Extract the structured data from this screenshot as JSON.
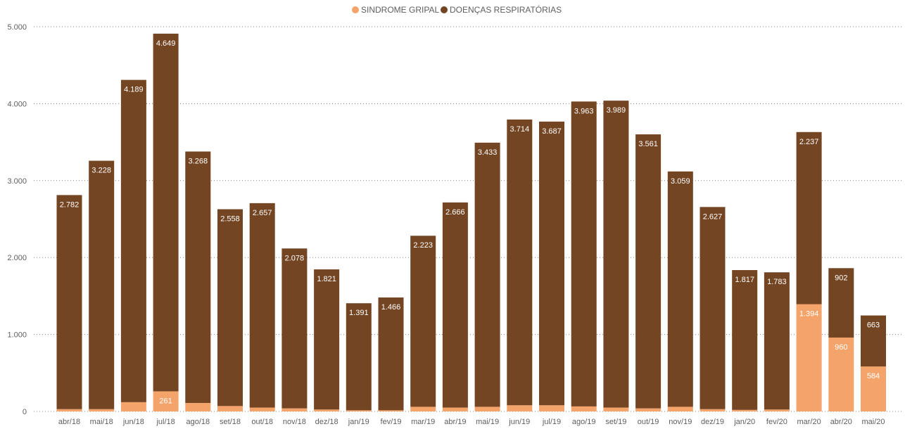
{
  "chart_data": {
    "type": "bar",
    "stacked": true,
    "legend_position": "top-center",
    "grid": true,
    "ylim": [
      0,
      5000
    ],
    "y_ticks": [
      "0",
      "1.000",
      "2.000",
      "3.000",
      "4.000",
      "5.000"
    ],
    "colors": {
      "sindrome": "#f4a46a",
      "doencas": "#744522"
    },
    "categories": [
      "abr/18",
      "mai/18",
      "jun/18",
      "jul/18",
      "ago/18",
      "set/18",
      "out/18",
      "nov/18",
      "dez/18",
      "jan/19",
      "fev/19",
      "mar/19",
      "abr/19",
      "mai/19",
      "jun/19",
      "jul/19",
      "ago/19",
      "set/19",
      "out/19",
      "nov/19",
      "dez/19",
      "jan/20",
      "fev/20",
      "mar/20",
      "abr/20",
      "mai/20"
    ],
    "series": [
      {
        "name": "SINDROME GRIPAL",
        "values": [
          30,
          30,
          120,
          261,
          110,
          70,
          50,
          40,
          25,
          15,
          15,
          60,
          50,
          60,
          80,
          80,
          65,
          50,
          40,
          60,
          30,
          20,
          25,
          1394,
          960,
          584
        ],
        "labels": [
          "",
          "",
          "",
          "261",
          "",
          "",
          "",
          "",
          "",
          "",
          "",
          "",
          "",
          "",
          "",
          "",
          "",
          "",
          "",
          "",
          "",
          "",
          "",
          "1.394",
          "960",
          "584"
        ]
      },
      {
        "name": "DOENÇAS RESPIRATÓRIAS",
        "values": [
          2782,
          3228,
          4189,
          4649,
          3268,
          2558,
          2657,
          2078,
          1821,
          1391,
          1466,
          2223,
          2666,
          3433,
          3714,
          3687,
          3963,
          3989,
          3561,
          3059,
          2627,
          1817,
          1783,
          2237,
          902,
          663
        ],
        "labels": [
          "2.782",
          "3.228",
          "4.189",
          "4.649",
          "3.268",
          "2.558",
          "2.657",
          "2.078",
          "1.821",
          "1.391",
          "1.466",
          "2.223",
          "2.666",
          "3.433",
          "3.714",
          "3.687",
          "3.963",
          "3.989",
          "3.561",
          "3.059",
          "2.627",
          "1.817",
          "1.783",
          "2.237",
          "902",
          "663"
        ]
      }
    ]
  }
}
